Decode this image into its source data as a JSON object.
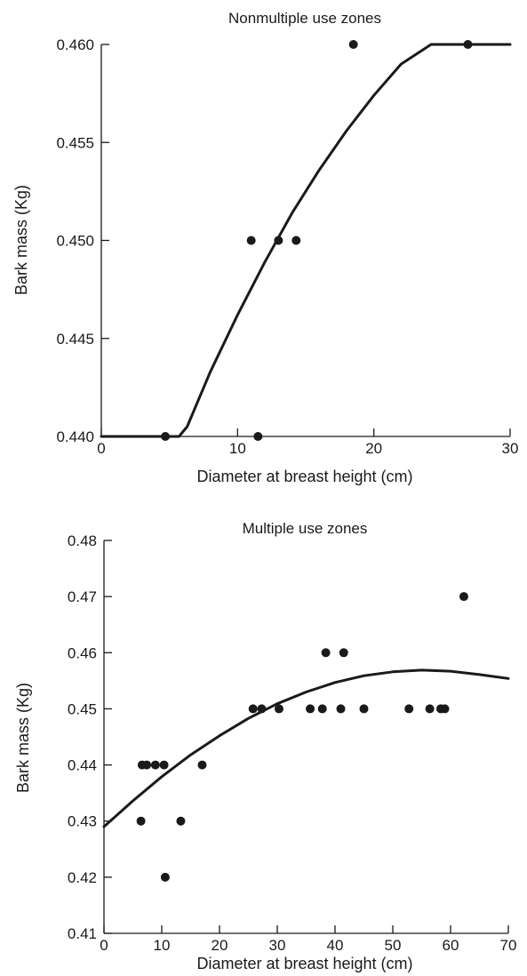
{
  "chart_data": [
    {
      "type": "scatter",
      "title": "Nonmultiple use zones",
      "xlabel": "Diameter at breast height (cm)",
      "ylabel": "Bark mass (Kg)",
      "xlim": [
        0,
        30
      ],
      "ylim": [
        0.44,
        0.46
      ],
      "x_ticks": [
        "0",
        "10",
        "20",
        "30"
      ],
      "y_ticks": [
        "0.440",
        "0.445",
        "0.450",
        "0.455",
        "0.460"
      ],
      "grid": false,
      "points": [
        {
          "x": 4.7,
          "y": 0.44
        },
        {
          "x": 11.5,
          "y": 0.44
        },
        {
          "x": 11.0,
          "y": 0.45
        },
        {
          "x": 13.0,
          "y": 0.45
        },
        {
          "x": 14.3,
          "y": 0.45
        },
        {
          "x": 18.5,
          "y": 0.46
        },
        {
          "x": 26.9,
          "y": 0.46
        }
      ],
      "fit_curve": [
        {
          "x": 0,
          "y": 0.44
        },
        {
          "x": 5.7,
          "y": 0.44
        },
        {
          "x": 6.3,
          "y": 0.4405
        },
        {
          "x": 8.0,
          "y": 0.4433
        },
        {
          "x": 10.0,
          "y": 0.4462
        },
        {
          "x": 12.0,
          "y": 0.4489
        },
        {
          "x": 14.0,
          "y": 0.4514
        },
        {
          "x": 16.0,
          "y": 0.4536
        },
        {
          "x": 18.0,
          "y": 0.4556
        },
        {
          "x": 20.0,
          "y": 0.4574
        },
        {
          "x": 22.0,
          "y": 0.459
        },
        {
          "x": 24.2,
          "y": 0.46
        },
        {
          "x": 30.0,
          "y": 0.46
        }
      ]
    },
    {
      "type": "scatter",
      "title": "Multiple use zones",
      "xlabel": "Diameter at breast height (cm)",
      "ylabel": "Bark mass (Kg)",
      "xlim": [
        0,
        70
      ],
      "ylim": [
        0.41,
        0.48
      ],
      "x_ticks": [
        "0",
        "10",
        "20",
        "30",
        "40",
        "50",
        "60",
        "70"
      ],
      "y_ticks": [
        "0.41",
        "0.42",
        "0.43",
        "0.44",
        "0.45",
        "0.46",
        "0.47",
        "0.48"
      ],
      "grid": false,
      "points": [
        {
          "x": 6.4,
          "y": 0.43
        },
        {
          "x": 6.6,
          "y": 0.44
        },
        {
          "x": 7.4,
          "y": 0.44
        },
        {
          "x": 8.9,
          "y": 0.44
        },
        {
          "x": 10.4,
          "y": 0.44
        },
        {
          "x": 10.6,
          "y": 0.42
        },
        {
          "x": 13.3,
          "y": 0.43
        },
        {
          "x": 17.0,
          "y": 0.44
        },
        {
          "x": 25.8,
          "y": 0.45
        },
        {
          "x": 27.3,
          "y": 0.45
        },
        {
          "x": 30.3,
          "y": 0.45
        },
        {
          "x": 35.7,
          "y": 0.45
        },
        {
          "x": 37.8,
          "y": 0.45
        },
        {
          "x": 38.4,
          "y": 0.46
        },
        {
          "x": 41.0,
          "y": 0.45
        },
        {
          "x": 41.5,
          "y": 0.46
        },
        {
          "x": 45.0,
          "y": 0.45
        },
        {
          "x": 52.8,
          "y": 0.45
        },
        {
          "x": 56.4,
          "y": 0.45
        },
        {
          "x": 58.3,
          "y": 0.45
        },
        {
          "x": 59.0,
          "y": 0.45
        },
        {
          "x": 62.3,
          "y": 0.47
        }
      ],
      "fit_curve": [
        {
          "x": 0,
          "y": 0.429
        },
        {
          "x": 5,
          "y": 0.4336
        },
        {
          "x": 10,
          "y": 0.4379
        },
        {
          "x": 15,
          "y": 0.4418
        },
        {
          "x": 20,
          "y": 0.4452
        },
        {
          "x": 25,
          "y": 0.4483
        },
        {
          "x": 30,
          "y": 0.4509
        },
        {
          "x": 35,
          "y": 0.453
        },
        {
          "x": 40,
          "y": 0.4547
        },
        {
          "x": 45,
          "y": 0.4559
        },
        {
          "x": 50,
          "y": 0.4566
        },
        {
          "x": 55,
          "y": 0.4569
        },
        {
          "x": 60,
          "y": 0.4567
        },
        {
          "x": 65,
          "y": 0.4561
        },
        {
          "x": 70,
          "y": 0.4554
        }
      ]
    }
  ]
}
